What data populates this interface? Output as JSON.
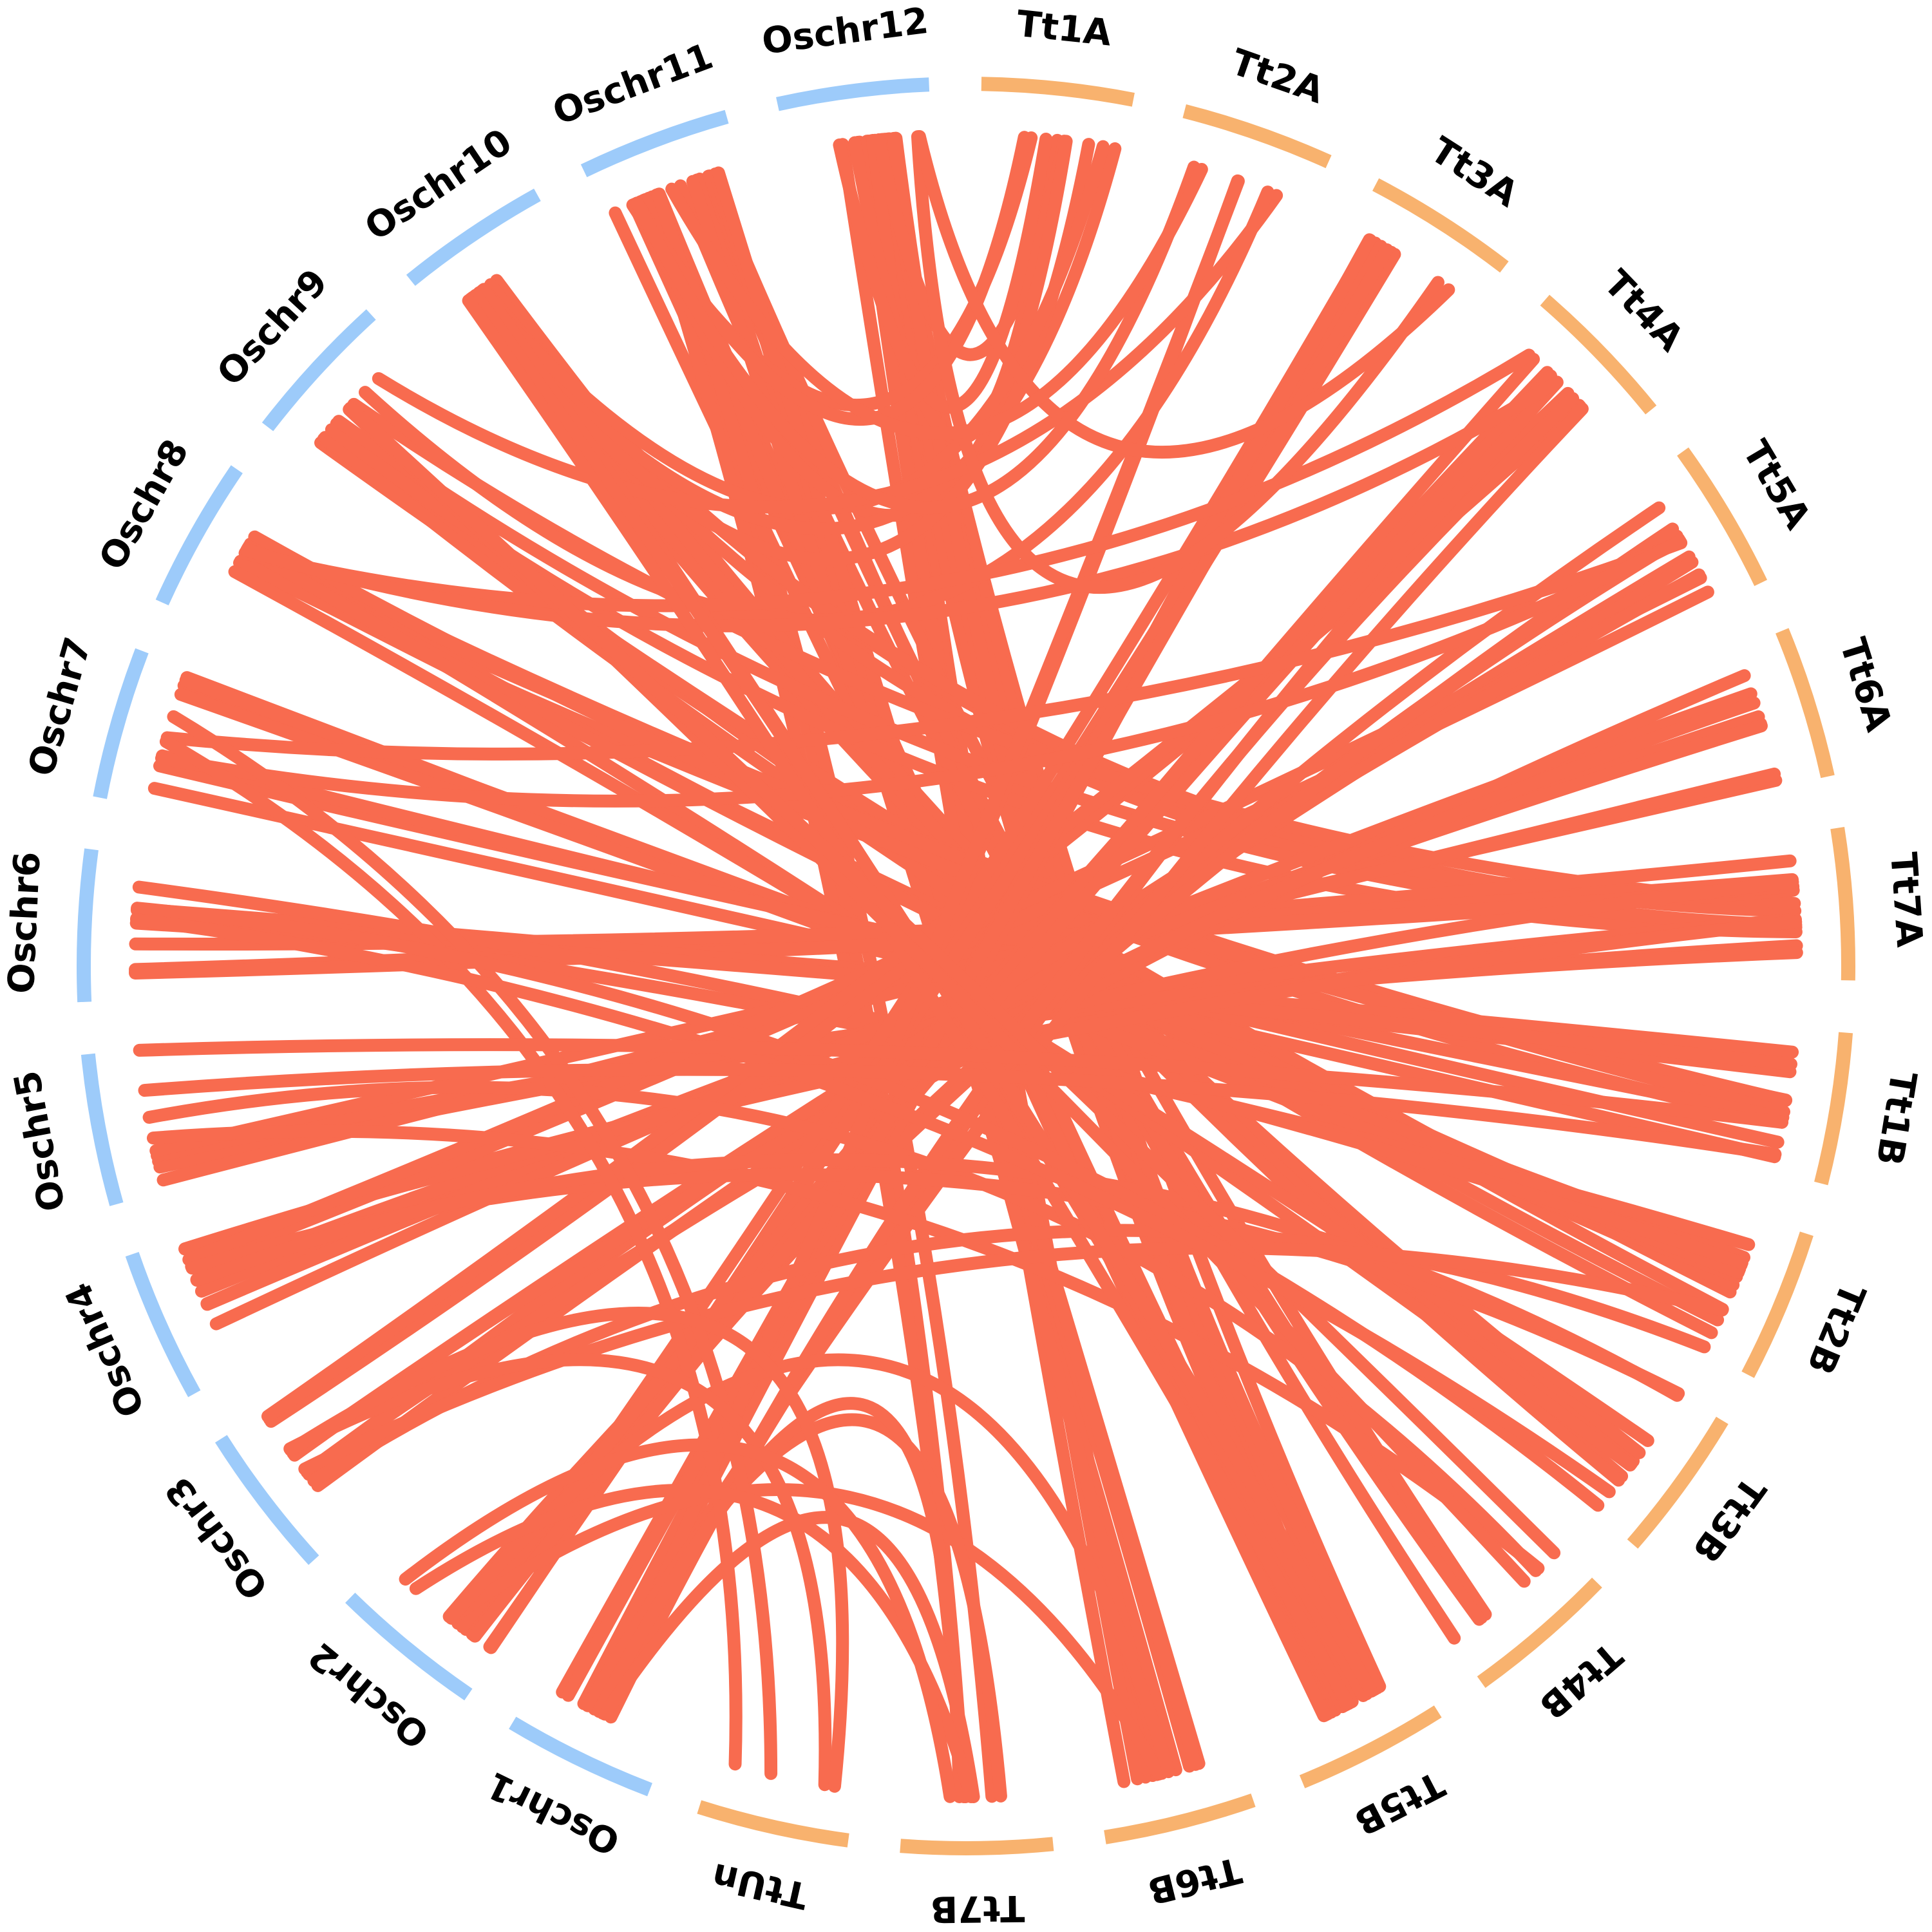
{
  "chart_data": {
    "type": "circos",
    "colors": {
      "rice_segment": "#9dcbfa",
      "wheat_segment": "#f8b26e",
      "link": "#f86b4f"
    },
    "segments": [
      {
        "id": "Tt1A",
        "label": "Tt1A",
        "group": "wheat"
      },
      {
        "id": "Tt2A",
        "label": "Tt2A",
        "group": "wheat"
      },
      {
        "id": "Tt3A",
        "label": "Tt3A",
        "group": "wheat"
      },
      {
        "id": "Tt4A",
        "label": "Tt4A",
        "group": "wheat"
      },
      {
        "id": "Tt5A",
        "label": "Tt5A",
        "group": "wheat"
      },
      {
        "id": "Tt6A",
        "label": "Tt6A",
        "group": "wheat"
      },
      {
        "id": "Tt7A",
        "label": "Tt7A",
        "group": "wheat"
      },
      {
        "id": "Tt1B",
        "label": "Tt1B",
        "group": "wheat"
      },
      {
        "id": "Tt2B",
        "label": "Tt2B",
        "group": "wheat"
      },
      {
        "id": "Tt3B",
        "label": "Tt3B",
        "group": "wheat"
      },
      {
        "id": "Tt4B",
        "label": "Tt4B",
        "group": "wheat"
      },
      {
        "id": "Tt5B",
        "label": "Tt5B",
        "group": "wheat"
      },
      {
        "id": "Tt6B",
        "label": "Tt6B",
        "group": "wheat"
      },
      {
        "id": "Tt7B",
        "label": "Tt7B",
        "group": "wheat"
      },
      {
        "id": "TtUn",
        "label": "TtUn",
        "group": "wheat"
      },
      {
        "id": "Oschr1",
        "label": "Oschr1",
        "group": "rice"
      },
      {
        "id": "Oschr2",
        "label": "Oschr2",
        "group": "rice"
      },
      {
        "id": "Oschr3",
        "label": "Oschr3",
        "group": "rice"
      },
      {
        "id": "Oschr4",
        "label": "Oschr4",
        "group": "rice"
      },
      {
        "id": "Oschr5",
        "label": "Oschr5",
        "group": "rice"
      },
      {
        "id": "Oschr6",
        "label": "Oschr6",
        "group": "rice"
      },
      {
        "id": "Oschr7",
        "label": "Oschr7",
        "group": "rice"
      },
      {
        "id": "Oschr8",
        "label": "Oschr8",
        "group": "rice"
      },
      {
        "id": "Oschr9",
        "label": "Oschr9",
        "group": "rice"
      },
      {
        "id": "Oschr10",
        "label": "Oschr10",
        "group": "rice"
      },
      {
        "id": "Oschr11",
        "label": "Oschr11",
        "group": "rice"
      },
      {
        "id": "Oschr12",
        "label": "Oschr12",
        "group": "rice"
      }
    ],
    "links": [
      {
        "a": "Oschr12",
        "b": "Tt5B",
        "count": 14
      },
      {
        "a": "Oschr12",
        "b": "Tt6B",
        "count": 5
      },
      {
        "a": "Oschr11",
        "b": "Tt5B",
        "count": 10
      },
      {
        "a": "Oschr11",
        "b": "Tt4B",
        "count": 4
      },
      {
        "a": "Oschr11",
        "b": "Tt6B",
        "count": 5
      },
      {
        "a": "Oschr11",
        "b": "Tt7B",
        "count": 3
      },
      {
        "a": "Oschr10",
        "b": "Tt3B",
        "count": 5
      },
      {
        "a": "Oschr10",
        "b": "Tt7A",
        "count": 3
      },
      {
        "a": "Oschr9",
        "b": "Tt2B",
        "count": 4
      },
      {
        "a": "Oschr9",
        "b": "Tt7A",
        "count": 3
      },
      {
        "a": "Oschr8",
        "b": "Tt1B",
        "count": 4
      },
      {
        "a": "Oschr8",
        "b": "Tt2B",
        "count": 3
      },
      {
        "a": "Oschr8",
        "b": "Tt3B",
        "count": 2
      },
      {
        "a": "Oschr7",
        "b": "Tt2B",
        "count": 4
      },
      {
        "a": "Oschr7",
        "b": "Tt1B",
        "count": 3
      },
      {
        "a": "Oschr6",
        "b": "Tt7A",
        "count": 4
      },
      {
        "a": "Oschr6",
        "b": "Tt1B",
        "count": 3
      },
      {
        "a": "Oschr6",
        "b": "Tt2B",
        "count": 2
      },
      {
        "a": "Oschr5",
        "b": "Tt7A",
        "count": 3
      },
      {
        "a": "Oschr5",
        "b": "Tt6A",
        "count": 2
      },
      {
        "a": "Oschr4",
        "b": "Tt6A",
        "count": 4
      },
      {
        "a": "Oschr4",
        "b": "Tt7A",
        "count": 3
      },
      {
        "a": "Oschr4",
        "b": "Tt5A",
        "count": 2
      },
      {
        "a": "Oschr3",
        "b": "Tt5A",
        "count": 4
      },
      {
        "a": "Oschr3",
        "b": "Tt4A",
        "count": 3
      },
      {
        "a": "Oschr3",
        "b": "Tt6A",
        "count": 2
      },
      {
        "a": "Oschr2",
        "b": "Tt5A",
        "count": 4
      },
      {
        "a": "Oschr2",
        "b": "Tt3A",
        "count": 3
      },
      {
        "a": "Oschr2",
        "b": "Tt4A",
        "count": 3
      },
      {
        "a": "Oschr1",
        "b": "Tt3A",
        "count": 4
      },
      {
        "a": "Oschr1",
        "b": "Tt4A",
        "count": 3
      },
      {
        "a": "Oschr1",
        "b": "Tt2A",
        "count": 2
      },
      {
        "a": "Oschr12",
        "b": "Tt1A",
        "count": 3
      },
      {
        "a": "Oschr11",
        "b": "Tt1A",
        "count": 3
      },
      {
        "a": "Oschr10",
        "b": "Tt1A",
        "count": 3
      },
      {
        "a": "Oschr9",
        "b": "Tt2A",
        "count": 2
      },
      {
        "a": "Oschr8",
        "b": "Tt4A",
        "count": 2
      },
      {
        "a": "Oschr7",
        "b": "Tt5A",
        "count": 2
      },
      {
        "a": "Oschr5",
        "b": "Tt4B",
        "count": 2
      },
      {
        "a": "Oschr4",
        "b": "Tt3B",
        "count": 2
      },
      {
        "a": "Oschr3",
        "b": "Tt2B",
        "count": 2
      },
      {
        "a": "Oschr2",
        "b": "Tt6B",
        "count": 2
      },
      {
        "a": "Oschr1",
        "b": "Tt7B",
        "count": 3
      },
      {
        "a": "TtUn",
        "b": "Oschr7",
        "count": 2
      },
      {
        "a": "TtUn",
        "b": "Oschr3",
        "count": 2
      },
      {
        "a": "Oschr12",
        "b": "Tt3A",
        "count": 2
      },
      {
        "a": "Oschr11",
        "b": "Tt2A",
        "count": 2
      },
      {
        "a": "Oschr10",
        "b": "Tt5B",
        "count": 3
      },
      {
        "a": "Oschr9",
        "b": "Tt4B",
        "count": 2
      },
      {
        "a": "Oschr6",
        "b": "Tt3B",
        "count": 2
      },
      {
        "a": "Oschr5",
        "b": "Tt1B",
        "count": 2
      },
      {
        "a": "Oschr2",
        "b": "Tt7B",
        "count": 2
      }
    ]
  }
}
